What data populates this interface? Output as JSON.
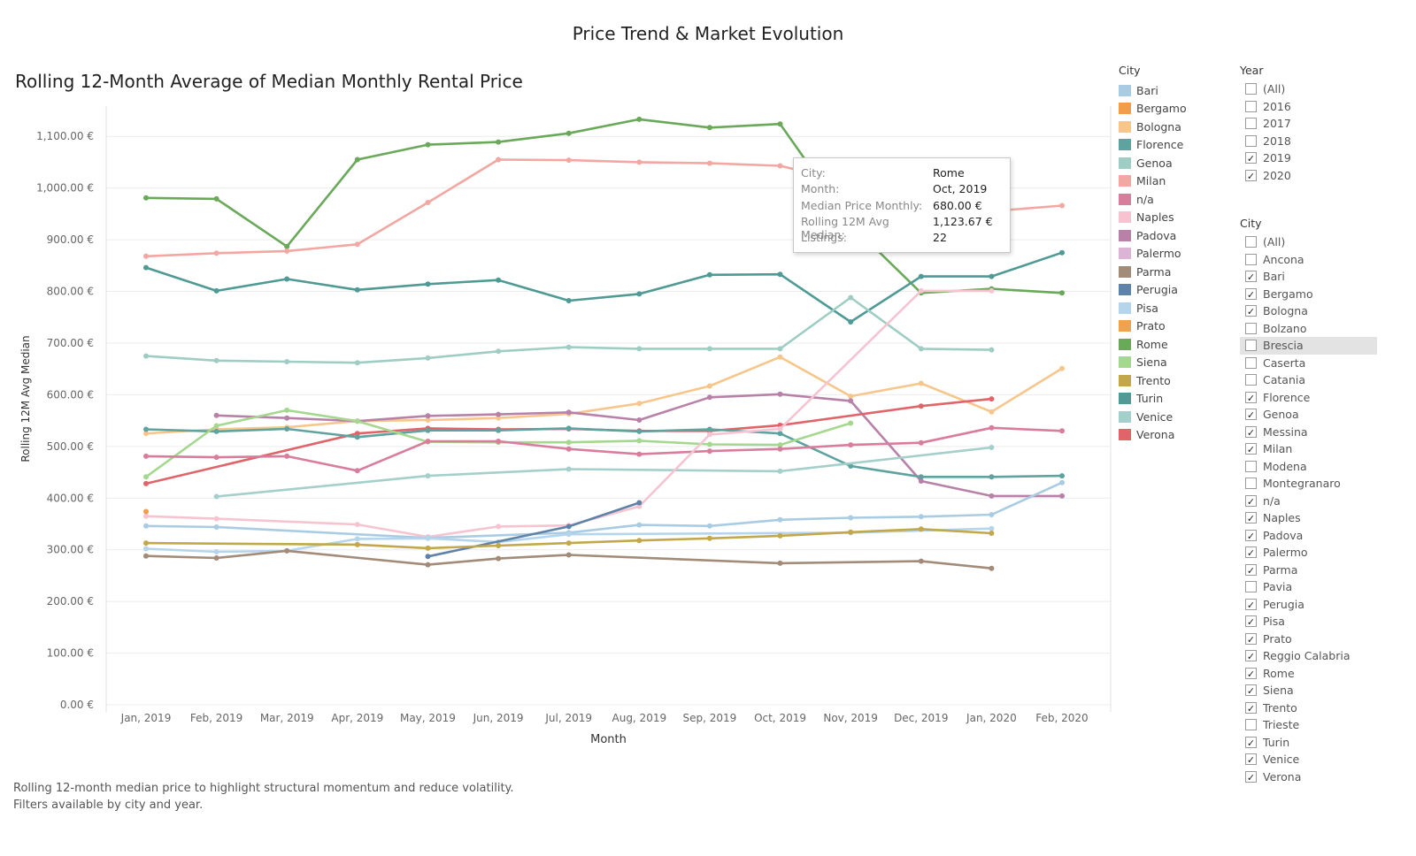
{
  "dashboard_title": "Price Trend & Market Evolution",
  "chart_title": "Rolling 12-Month Average of Median Monthly Rental Price",
  "footnote": [
    "Rolling 12-month median price to highlight structural momentum and reduce volatility.",
    "Filters available by city and year."
  ],
  "legend": {
    "title": "City",
    "items": [
      {
        "label": "Bari",
        "color": "#a9cce3"
      },
      {
        "label": "Bergamo",
        "color": "#f39c4a"
      },
      {
        "label": "Bologna",
        "color": "#f7c68b"
      },
      {
        "label": "Florence",
        "color": "#5ea39f"
      },
      {
        "label": "Genoa",
        "color": "#9fcdc3"
      },
      {
        "label": "Milan",
        "color": "#f3a7a2"
      },
      {
        "label": "n/a",
        "color": "#d97d9c"
      },
      {
        "label": "Naples",
        "color": "#f6c4d1"
      },
      {
        "label": "Padova",
        "color": "#b882a8"
      },
      {
        "label": "Palermo",
        "color": "#dbb4d6"
      },
      {
        "label": "Parma",
        "color": "#a28b78"
      },
      {
        "label": "Perugia",
        "color": "#5f83a8"
      },
      {
        "label": "Pisa",
        "color": "#b5d5ec"
      },
      {
        "label": "Prato",
        "color": "#f0a24c"
      },
      {
        "label": "Rome",
        "color": "#6aa85a"
      },
      {
        "label": "Siena",
        "color": "#a5d88f"
      },
      {
        "label": "Trento",
        "color": "#c2a84a"
      },
      {
        "label": "Turin",
        "color": "#4f9a94"
      },
      {
        "label": "Venice",
        "color": "#a4cfcb"
      },
      {
        "label": "Verona",
        "color": "#e0646a"
      }
    ]
  },
  "year_filter": {
    "title": "Year",
    "items": [
      {
        "label": "(All)",
        "checked": false
      },
      {
        "label": "2016",
        "checked": false
      },
      {
        "label": "2017",
        "checked": false
      },
      {
        "label": "2018",
        "checked": false
      },
      {
        "label": "2019",
        "checked": true
      },
      {
        "label": "2020",
        "checked": true
      }
    ]
  },
  "city_filter": {
    "title": "City",
    "items": [
      {
        "label": "(All)",
        "checked": false
      },
      {
        "label": "Ancona",
        "checked": false
      },
      {
        "label": "Bari",
        "checked": true
      },
      {
        "label": "Bergamo",
        "checked": true
      },
      {
        "label": "Bologna",
        "checked": true
      },
      {
        "label": "Bolzano",
        "checked": false
      },
      {
        "label": "Brescia",
        "checked": false,
        "highlighted": true
      },
      {
        "label": "Caserta",
        "checked": false
      },
      {
        "label": "Catania",
        "checked": false
      },
      {
        "label": "Florence",
        "checked": true
      },
      {
        "label": "Genoa",
        "checked": true
      },
      {
        "label": "Messina",
        "checked": true
      },
      {
        "label": "Milan",
        "checked": true
      },
      {
        "label": "Modena",
        "checked": false
      },
      {
        "label": "Montegranaro",
        "checked": false
      },
      {
        "label": "n/a",
        "checked": true
      },
      {
        "label": "Naples",
        "checked": true
      },
      {
        "label": "Padova",
        "checked": true
      },
      {
        "label": "Palermo",
        "checked": true
      },
      {
        "label": "Parma",
        "checked": true
      },
      {
        "label": "Pavia",
        "checked": false
      },
      {
        "label": "Perugia",
        "checked": true
      },
      {
        "label": "Pisa",
        "checked": true
      },
      {
        "label": "Prato",
        "checked": true
      },
      {
        "label": "Reggio Calabria",
        "checked": true
      },
      {
        "label": "Rome",
        "checked": true
      },
      {
        "label": "Siena",
        "checked": true
      },
      {
        "label": "Trento",
        "checked": true
      },
      {
        "label": "Trieste",
        "checked": false
      },
      {
        "label": "Turin",
        "checked": true
      },
      {
        "label": "Venice",
        "checked": true
      },
      {
        "label": "Verona",
        "checked": true
      }
    ]
  },
  "tooltip": {
    "rows": [
      {
        "key": "City:",
        "value": "Rome"
      },
      {
        "key": "Month:",
        "value": "Oct, 2019"
      },
      {
        "key": "Median Price Monthly:",
        "value": "680.00 €"
      },
      {
        "key": "Rolling 12M Avg Median:",
        "value": "1,123.67 €"
      },
      {
        "key": "Listings:",
        "value": "22"
      }
    ]
  },
  "chart_data": {
    "type": "line",
    "xlabel": "Month",
    "ylabel": "Rolling 12M Avg Median",
    "ylim": [
      0,
      1150
    ],
    "yticks": [
      0,
      100,
      200,
      300,
      400,
      500,
      600,
      700,
      800,
      900,
      1000,
      1100
    ],
    "ytick_labels": [
      "0.00 €",
      "100.00 €",
      "200.00 €",
      "300.00 €",
      "400.00 €",
      "500.00 €",
      "600.00 €",
      "700.00 €",
      "800.00 €",
      "900.00 €",
      "1,000.00 €",
      "1,100.00 €"
    ],
    "grid": true,
    "categories": [
      "Jan, 2019",
      "Feb, 2019",
      "Mar, 2019",
      "Apr, 2019",
      "May, 2019",
      "Jun, 2019",
      "Jul, 2019",
      "Aug, 2019",
      "Sep, 2019",
      "Oct, 2019",
      "Nov, 2019",
      "Dec, 2019",
      "Jan, 2020",
      "Feb, 2020"
    ],
    "series": [
      {
        "name": "Rome",
        "color": "#6aa85a",
        "values": [
          981,
          979,
          887,
          1055,
          1084,
          1089,
          1106,
          1133,
          1117,
          1124,
          930,
          797,
          805,
          797
        ]
      },
      {
        "name": "Milan",
        "color": "#f3a7a2",
        "values": [
          868,
          874,
          878,
          891,
          972,
          1055,
          1054,
          1050,
          1048,
          1043,
          1010,
          955,
          955,
          966
        ]
      },
      {
        "name": "Turin",
        "color": "#4f9a94",
        "values": [
          846,
          801,
          824,
          803,
          814,
          822,
          782,
          795,
          832,
          833,
          741,
          829,
          829,
          875
        ]
      },
      {
        "name": "Genoa",
        "color": "#9fcdc3",
        "values": [
          675,
          666,
          664,
          662,
          671,
          684,
          692,
          689,
          689,
          689,
          788,
          689,
          687,
          null
        ]
      },
      {
        "name": "Bologna",
        "color": "#f7c68b",
        "values": [
          525,
          533,
          537,
          549,
          551,
          555,
          563,
          583,
          617,
          673,
          597,
          622,
          567,
          651
        ]
      },
      {
        "name": "Padova",
        "color": "#b882a8",
        "values": [
          null,
          560,
          555,
          549,
          559,
          562,
          566,
          551,
          595,
          601,
          588,
          433,
          404,
          404
        ]
      },
      {
        "name": "Verona",
        "color": "#e0646a",
        "values": [
          428,
          null,
          null,
          525,
          535,
          533,
          534,
          530,
          530,
          541,
          null,
          578,
          592,
          null
        ]
      },
      {
        "name": "Florence",
        "color": "#5ea39f",
        "values": [
          533,
          529,
          534,
          518,
          531,
          531,
          535,
          529,
          533,
          525,
          462,
          441,
          441,
          443
        ]
      },
      {
        "name": "Siena",
        "color": "#a5d88f",
        "values": [
          441,
          540,
          570,
          549,
          509,
          508,
          508,
          511,
          504,
          503,
          545,
          null,
          null,
          null
        ]
      },
      {
        "name": "n/a",
        "color": "#d97d9c",
        "values": [
          481,
          479,
          481,
          453,
          510,
          510,
          495,
          485,
          491,
          495,
          503,
          507,
          536,
          530
        ]
      },
      {
        "name": "Venice",
        "color": "#a4cfcb",
        "values": [
          null,
          403,
          null,
          null,
          443,
          null,
          456,
          null,
          null,
          452,
          null,
          null,
          498,
          null
        ]
      },
      {
        "name": "Naples",
        "color": "#f6c4d1",
        "values": [
          365,
          360,
          null,
          349,
          325,
          345,
          347,
          384,
          523,
          534,
          null,
          801,
          801,
          null
        ]
      },
      {
        "name": "Bergamo",
        "color": "#f39c4a",
        "values": [
          374,
          null,
          null,
          null,
          null,
          null,
          null,
          null,
          null,
          null,
          null,
          null,
          null,
          null
        ]
      },
      {
        "name": "Bari",
        "color": "#a9cce3",
        "values": [
          346,
          344,
          null,
          null,
          323,
          null,
          333,
          348,
          346,
          358,
          362,
          364,
          368,
          430
        ]
      },
      {
        "name": "Pisa",
        "color": "#b5d5ec",
        "values": [
          302,
          296,
          298,
          321,
          322,
          315,
          330,
          null,
          null,
          null,
          333,
          null,
          341,
          null
        ]
      },
      {
        "name": "Perugia",
        "color": "#5f83a8",
        "values": [
          null,
          null,
          null,
          null,
          287,
          null,
          345,
          391,
          null,
          null,
          null,
          null,
          null,
          null
        ]
      },
      {
        "name": "Trento",
        "color": "#c2a84a",
        "values": [
          313,
          null,
          null,
          310,
          303,
          308,
          313,
          318,
          322,
          327,
          334,
          340,
          332,
          null
        ]
      },
      {
        "name": "Parma",
        "color": "#a28b78",
        "values": [
          288,
          284,
          298,
          null,
          271,
          283,
          290,
          null,
          null,
          274,
          null,
          278,
          264,
          null
        ]
      }
    ]
  }
}
